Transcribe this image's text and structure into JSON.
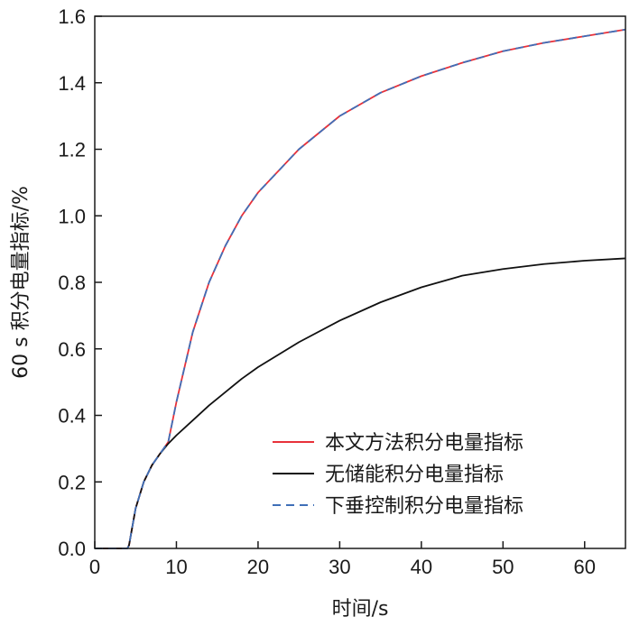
{
  "chart_data": {
    "type": "line",
    "title": "",
    "xlabel": "时间/s",
    "ylabel": "60 s 积分电量指标/%",
    "xlim": [
      0,
      65
    ],
    "ylim": [
      0.0,
      1.6
    ],
    "x_ticks": [
      0,
      10,
      20,
      30,
      40,
      50,
      60
    ],
    "y_ticks": [
      "0.0",
      "0.2",
      "0.4",
      "0.6",
      "0.8",
      "1.0",
      "1.2",
      "1.4",
      "1.6"
    ],
    "grid": false,
    "legend_position": "bottom-right",
    "series": [
      {
        "name": "本文方法积分电量指标",
        "color": "#e8313a",
        "style": "solid",
        "x": [
          0,
          4,
          4.2,
          5,
          6,
          7,
          8,
          9,
          10,
          12,
          14,
          16,
          18,
          20,
          25,
          30,
          35,
          40,
          45,
          50,
          55,
          60,
          65
        ],
        "y": [
          0,
          0,
          0.01,
          0.12,
          0.2,
          0.25,
          0.285,
          0.32,
          0.44,
          0.65,
          0.8,
          0.91,
          1.0,
          1.07,
          1.2,
          1.3,
          1.37,
          1.42,
          1.46,
          1.495,
          1.52,
          1.54,
          1.56
        ]
      },
      {
        "name": "无储能积分电量指标",
        "color": "#111111",
        "style": "solid",
        "x": [
          0,
          4,
          4.2,
          5,
          6,
          7,
          8,
          9,
          10,
          12,
          14,
          16,
          18,
          20,
          25,
          30,
          35,
          40,
          45,
          50,
          55,
          60,
          65
        ],
        "y": [
          0,
          0,
          0.01,
          0.12,
          0.2,
          0.25,
          0.285,
          0.315,
          0.34,
          0.385,
          0.43,
          0.47,
          0.51,
          0.545,
          0.62,
          0.685,
          0.74,
          0.785,
          0.82,
          0.84,
          0.855,
          0.865,
          0.872
        ]
      },
      {
        "name": "下垂控制积分电量指标",
        "color": "#3f6fb8",
        "style": "dashed",
        "x": [
          0,
          4,
          4.2,
          5,
          6,
          7,
          8,
          9,
          10,
          12,
          14,
          16,
          18,
          20,
          25,
          30,
          35,
          40,
          45,
          50,
          55,
          60,
          65
        ],
        "y": [
          0,
          0,
          0.01,
          0.12,
          0.2,
          0.25,
          0.285,
          0.32,
          0.44,
          0.65,
          0.8,
          0.91,
          1.0,
          1.07,
          1.2,
          1.3,
          1.37,
          1.42,
          1.46,
          1.495,
          1.52,
          1.54,
          1.56
        ]
      }
    ]
  }
}
